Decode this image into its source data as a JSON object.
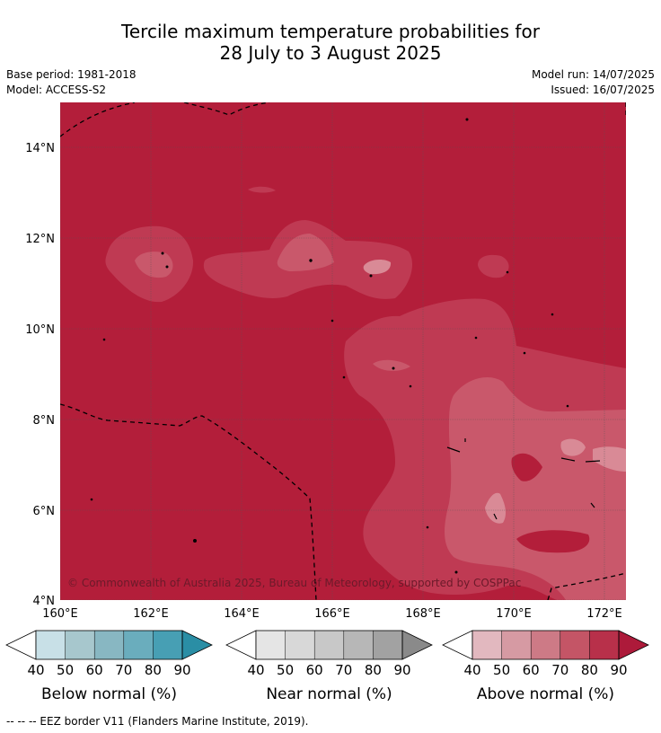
{
  "title": {
    "line1": "Tercile maximum temperature probabilities for",
    "line2": "28 July to 3 August 2025"
  },
  "meta": {
    "base_period": "Base period: 1981-2018",
    "model": "Model: ACCESS-S2",
    "model_run": "Model run: 14/07/2025",
    "issued": "Issued: 16/07/2025"
  },
  "map": {
    "lat_labels": [
      "14°N",
      "12°N",
      "10°N",
      "8°N",
      "6°N",
      "4°N"
    ],
    "lon_labels": [
      "160°E",
      "162°E",
      "164°E",
      "166°E",
      "168°E",
      "170°E",
      "172°E"
    ],
    "copyright": "© Commonwealth of Australia 2025, Bureau of Meteorology, supported by COSPPac",
    "base_color": "#b31e3a"
  },
  "colorbars": [
    {
      "label": "Below normal (%)",
      "ticks": [
        "40",
        "50",
        "60",
        "70",
        "80",
        "90"
      ],
      "colors": [
        "#c8e0e7",
        "#a7c7cd",
        "#88b7c2",
        "#6aadbd",
        "#479fb4",
        "#2a8ea5"
      ]
    },
    {
      "label": "Near normal (%)",
      "ticks": [
        "40",
        "50",
        "60",
        "70",
        "80",
        "90"
      ],
      "colors": [
        "#e5e5e5",
        "#d8d8d8",
        "#c8c8c8",
        "#b7b7b7",
        "#a2a2a2",
        "#8a8a8a"
      ]
    },
    {
      "label": "Above normal (%)",
      "ticks": [
        "40",
        "50",
        "60",
        "70",
        "80",
        "90"
      ],
      "colors": [
        "#e2b8bf",
        "#d69aa3",
        "#cd7a86",
        "#c45566",
        "#b8304a",
        "#ad1a3a"
      ]
    }
  ],
  "footer": "--  --  -- EEZ border V11 (Flanders Marine Institute, 2019)."
}
